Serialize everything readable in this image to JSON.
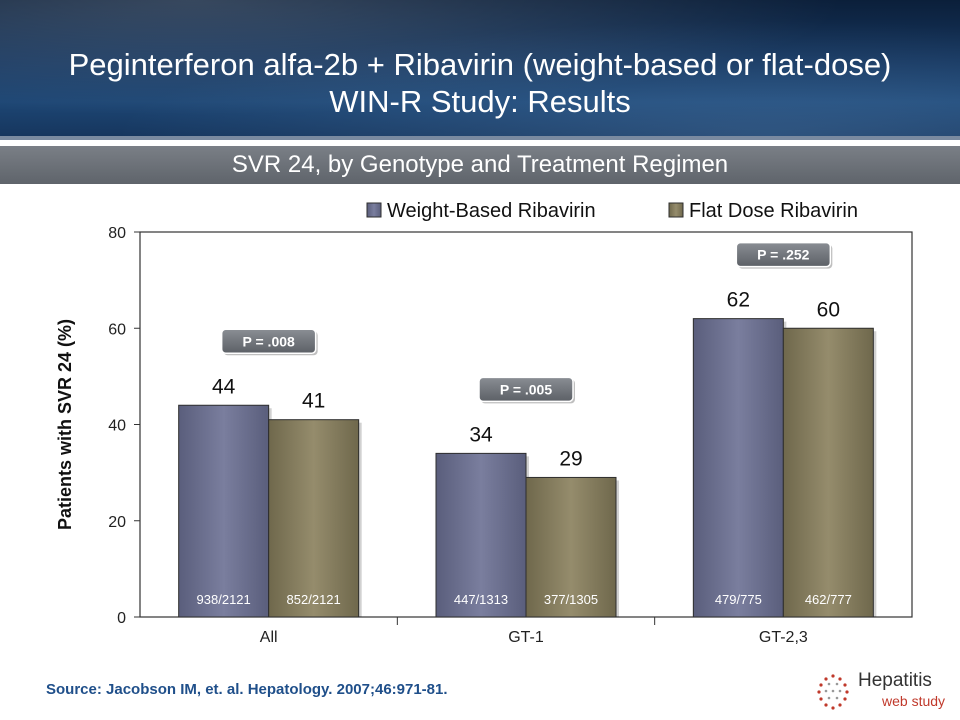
{
  "header": {
    "title_line1": "Peginterferon alfa-2b + Ribavirin (weight-based or flat-dose)",
    "title_line2": "WIN-R Study: Results"
  },
  "subtitle": "SVR 24, by Genotype and Treatment Regimen",
  "chart_data": {
    "type": "bar",
    "categories": [
      "All",
      "GT-1",
      "GT-2,3"
    ],
    "series": [
      {
        "name": "Weight-Based Ribavirin",
        "values": [
          44,
          34,
          62
        ],
        "fractions": [
          "938/2121",
          "447/1313",
          "479/775"
        ],
        "color": "#6b6f8e"
      },
      {
        "name": "Flat Dose Ribavirin",
        "values": [
          41,
          29,
          60
        ],
        "fractions": [
          "852/2121",
          "377/1305",
          "462/777"
        ],
        "color": "#857d5e"
      }
    ],
    "p_values": [
      "P = .008",
      "P = .005",
      "P = .252"
    ],
    "ylabel": "Patients with SVR 24 (%)",
    "ylim": [
      0,
      80
    ],
    "yticks": [
      0,
      20,
      40,
      60,
      80
    ],
    "legend_position": "top",
    "grid": false
  },
  "source": "Source: Jacobson IM, et. al. Hepatology. 2007;46:971-81.",
  "brand": {
    "name": "Hepatitis",
    "tagline": "web study"
  }
}
